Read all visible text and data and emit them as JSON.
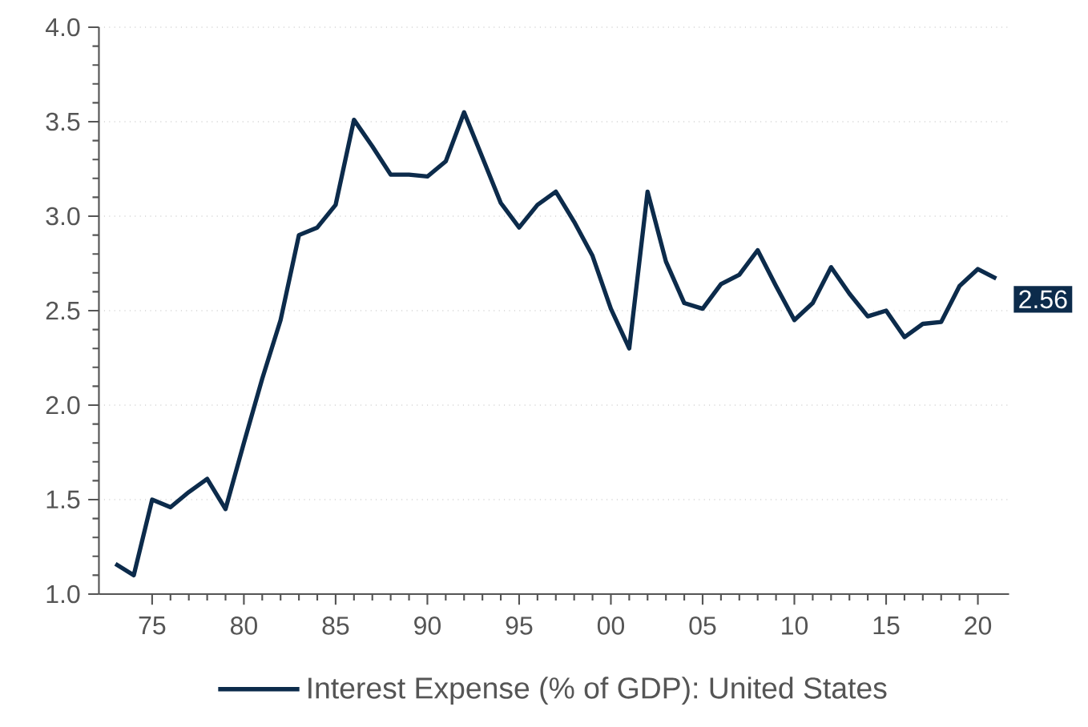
{
  "chart_data": {
    "type": "line",
    "x": [
      1973,
      1974,
      1975,
      1976,
      1977,
      1978,
      1979,
      1980,
      1981,
      1982,
      1983,
      1984,
      1985,
      1986,
      1987,
      1988,
      1989,
      1990,
      1991,
      1992,
      1993,
      1994,
      1995,
      1996,
      1997,
      1998,
      1999,
      2000,
      2001,
      2002,
      2003,
      2004,
      2005,
      2006,
      2007,
      2008,
      2009,
      2010,
      2011,
      2012,
      2013,
      2014,
      2015,
      2016,
      2017,
      2018,
      2019,
      2020,
      2021
    ],
    "series": [
      {
        "name": "Interest Expense (% of GDP): United States",
        "color": "#0c2b4b",
        "values": [
          1.16,
          1.1,
          1.5,
          1.46,
          1.54,
          1.61,
          1.45,
          1.8,
          2.14,
          2.45,
          2.9,
          2.94,
          3.06,
          3.51,
          3.37,
          3.22,
          3.22,
          3.21,
          3.29,
          3.55,
          3.31,
          3.07,
          2.94,
          3.06,
          3.13,
          2.97,
          2.79,
          2.51,
          2.3,
          3.13,
          2.76,
          2.54,
          2.51,
          2.64,
          2.69,
          2.82,
          2.63,
          2.45,
          2.54,
          2.73,
          2.59,
          2.47,
          2.5,
          2.36,
          2.43,
          2.44,
          2.63,
          2.72,
          2.67
        ]
      }
    ],
    "xlim": [
      1972.1,
      2021.7
    ],
    "ylim": [
      1.0,
      4.0
    ],
    "xticks": [
      {
        "value": 1975,
        "label": "75"
      },
      {
        "value": 1980,
        "label": "80"
      },
      {
        "value": 1985,
        "label": "85"
      },
      {
        "value": 1990,
        "label": "90"
      },
      {
        "value": 1995,
        "label": "95"
      },
      {
        "value": 2000,
        "label": "00"
      },
      {
        "value": 2005,
        "label": "05"
      },
      {
        "value": 2010,
        "label": "10"
      },
      {
        "value": 2015,
        "label": "15"
      },
      {
        "value": 2020,
        "label": "20"
      }
    ],
    "yticks": [
      {
        "value": 1.0,
        "label": "1.0"
      },
      {
        "value": 1.5,
        "label": "1.5"
      },
      {
        "value": 2.0,
        "label": "2.0"
      },
      {
        "value": 2.5,
        "label": "2.5"
      },
      {
        "value": 3.0,
        "label": "3.0"
      },
      {
        "value": 3.5,
        "label": "3.5"
      },
      {
        "value": 4.0,
        "label": "4.0"
      }
    ],
    "grid": "y",
    "legend": "bottom",
    "marker": "none",
    "line_style": "solid",
    "annotations": [
      "2.56"
    ]
  }
}
